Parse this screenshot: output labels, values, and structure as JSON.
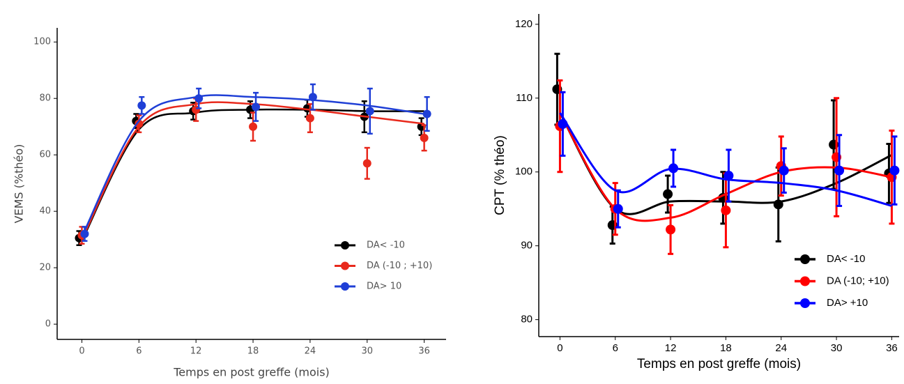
{
  "chart_data": [
    {
      "type": "line",
      "x_label": "Temps en post greffe (mois)",
      "y_label": "VEMS (%théo)",
      "x": [
        0,
        6,
        12,
        18,
        24,
        30,
        36
      ],
      "xlim": [
        -2.6,
        38.3
      ],
      "ylim": [
        -5.4,
        105
      ],
      "xticks": [
        0,
        6,
        12,
        18,
        24,
        30,
        36
      ],
      "yticks": [
        0,
        20,
        40,
        60,
        80,
        100
      ],
      "legend": "lower right",
      "series": [
        {
          "name": "DA< -10",
          "color": "#000000",
          "values": [
            30.5,
            72,
            75.5,
            76,
            76.5,
            73.5,
            70
          ],
          "errors": [
            2.5,
            2.5,
            3,
            3,
            3,
            5.5,
            3
          ],
          "fit": [
            29.5,
            69,
            75,
            76,
            76,
            75.5,
            75.5
          ]
        },
        {
          "name": "DA (-10 ; +10)",
          "color": "#e8291c",
          "values": [
            31.5,
            71,
            76,
            70,
            73,
            57,
            66
          ],
          "errors": [
            3,
            3,
            4,
            5,
            5,
            5.5,
            4.5
          ],
          "fit": [
            30,
            70,
            78,
            78,
            76,
            73.5,
            71
          ]
        },
        {
          "name": "DA> 10",
          "color": "#1f3fd6",
          "values": [
            32,
            77.5,
            80,
            77,
            80.5,
            75.5,
            74.5
          ],
          "errors": [
            2.5,
            3,
            3.5,
            5,
            4.5,
            8,
            6
          ],
          "fit": [
            31,
            72,
            80.5,
            80.5,
            79.5,
            77.5,
            74.5
          ]
        }
      ]
    },
    {
      "type": "line",
      "x_label": "Temps en post greffe (mois)",
      "y_label": "CPT (% théo)",
      "x": [
        0,
        6,
        12,
        18,
        24,
        30,
        36
      ],
      "xlim": [
        -2.3,
        36.8
      ],
      "ylim": [
        77.7,
        121.4
      ],
      "xticks": [
        0,
        6,
        12,
        18,
        24,
        30,
        36
      ],
      "yticks": [
        80,
        90,
        100,
        110,
        120
      ],
      "legend": "lower right",
      "series": [
        {
          "name": "DA< -10",
          "color": "#000000",
          "values": [
            111.2,
            92.8,
            97,
            96.5,
            95.6,
            103.7,
            99.8
          ],
          "errors": [
            4.8,
            2.5,
            2.5,
            3.5,
            5,
            6,
            4
          ],
          "fit": [
            108,
            95,
            96,
            96,
            96,
            98.5,
            102.3
          ]
        },
        {
          "name": "DA (-10; +10)",
          "color": "#ff0000",
          "values": [
            106.2,
            95,
            92.2,
            94.8,
            100.8,
            102,
            99.3
          ],
          "errors": [
            6.2,
            3.5,
            3.3,
            5,
            4,
            8,
            6.3
          ],
          "fit": [
            108,
            95,
            93.8,
            97,
            100,
            100.6,
            99.3
          ]
        },
        {
          "name": "DA> +10",
          "color": "#0000ff",
          "values": [
            106.5,
            95,
            100.5,
            99.5,
            100.2,
            100.2,
            100.2
          ],
          "errors": [
            4.3,
            2.5,
            2.5,
            3.5,
            3,
            4.8,
            4.6
          ],
          "fit": [
            108,
            97.5,
            100.4,
            99,
            98.5,
            97.5,
            95.4
          ]
        }
      ]
    }
  ]
}
